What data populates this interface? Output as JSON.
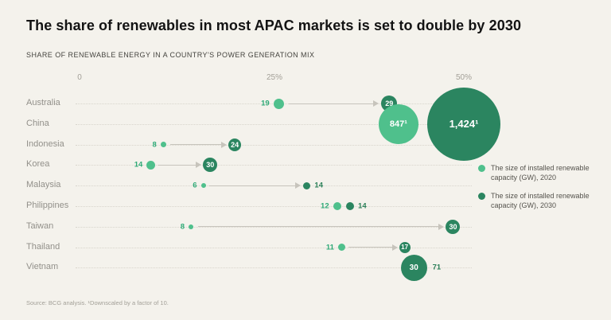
{
  "colors": {
    "background": "#f4f2ec",
    "light_green_2020": "#4fc08c",
    "dark_green_2030": "#2b8560",
    "arrow_gray": "#c7c4bc"
  },
  "chart_data": {
    "type": "dumbbell-bubble",
    "title": "The share of renewables in most APAC markets is set to double by 2030",
    "subtitle": "SHARE OF RENEWABLE ENERGY IN A COUNTRY'S POWER GENERATION MIX",
    "source": "Source: BCG analysis. ¹Downscaled by a factor of 10.",
    "x_axis": {
      "ticks": [
        "0",
        "25%",
        "50%"
      ],
      "range": [
        0,
        50
      ],
      "unit": "share of renewable energy in power generation mix (%)"
    },
    "legend": [
      {
        "label": "The size of installed renewable capacity (GW), 2020",
        "color": "light"
      },
      {
        "label": "The size of installed renewable capacity (GW), 2030",
        "color": "dark"
      }
    ],
    "rows": [
      {
        "country": "Australia",
        "share_2020_pct": 25.9,
        "share_2030_pct": 40.3,
        "gw_2020": "19",
        "gw_2030": "29",
        "dots": [
          {
            "value": "19",
            "share": 25.9,
            "d": 13,
            "color": "light",
            "label": "left"
          },
          {
            "value": "29",
            "share": 40.3,
            "d": 20,
            "color": "dark",
            "label": "inside"
          }
        ],
        "arrow": {
          "from": 27.2,
          "to": 38.7
        }
      },
      {
        "country": "China",
        "share_2020_pct": 41.5,
        "share_2030_pct": 50.0,
        "gw_2020": "847¹",
        "gw_2030": "1,424¹",
        "dots": [
          {
            "value": "847¹",
            "share": 41.5,
            "d": 50,
            "color": "light",
            "label": "inside"
          },
          {
            "value": "1,424¹",
            "share": 50.0,
            "d": 92,
            "color": "dark",
            "label": "inside"
          }
        ]
      },
      {
        "country": "Indonesia",
        "share_2020_pct": 10.9,
        "share_2030_pct": 20.2,
        "gw_2020": "8",
        "gw_2030": "24",
        "dots": [
          {
            "value": "8",
            "share": 10.9,
            "d": 7,
            "color": "light",
            "label": "left"
          },
          {
            "value": "24",
            "share": 20.2,
            "d": 16,
            "color": "dark",
            "label": "inside"
          }
        ],
        "arrow": {
          "from": 11.8,
          "to": 18.9
        }
      },
      {
        "country": "Korea",
        "share_2020_pct": 9.3,
        "share_2030_pct": 17.0,
        "gw_2020": "14",
        "gw_2030": "30",
        "dots": [
          {
            "value": "14",
            "share": 9.3,
            "d": 11,
            "color": "light",
            "label": "left"
          },
          {
            "value": "30",
            "share": 17.0,
            "d": 18,
            "color": "dark",
            "label": "inside"
          }
        ],
        "arrow": {
          "from": 10.3,
          "to": 15.6
        }
      },
      {
        "country": "Malaysia",
        "share_2020_pct": 16.1,
        "share_2030_pct": 29.6,
        "gw_2020": "6",
        "gw_2030": "14",
        "dots": [
          {
            "value": "6",
            "share": 16.1,
            "d": 6,
            "color": "light",
            "label": "left"
          },
          {
            "value": "14",
            "share": 29.6,
            "d": 9,
            "color": "dark",
            "label": "right"
          }
        ],
        "arrow": {
          "from": 16.9,
          "to": 28.6
        }
      },
      {
        "country": "Philippines",
        "share_2020_pct": 33.5,
        "share_2030_pct": 35.2,
        "gw_2020": "12",
        "gw_2030": "14",
        "dots": [
          {
            "value": "12",
            "share": 33.5,
            "d": 10,
            "color": "light",
            "label": "left"
          },
          {
            "value": "14",
            "share": 35.2,
            "d": 10,
            "color": "dark",
            "label": "right"
          }
        ]
      },
      {
        "country": "Taiwan",
        "share_2020_pct": 14.5,
        "share_2030_pct": 48.6,
        "gw_2020": "8",
        "gw_2030": "30",
        "dots": [
          {
            "value": "8",
            "share": 14.5,
            "d": 6,
            "color": "light",
            "label": "left"
          },
          {
            "value": "30",
            "share": 48.6,
            "d": 18,
            "color": "dark",
            "label": "inside"
          }
        ],
        "arrow": {
          "from": 15.4,
          "to": 47.2
        }
      },
      {
        "country": "Thailand",
        "share_2020_pct": 34.1,
        "share_2030_pct": 42.3,
        "gw_2020": "11",
        "gw_2030": "17",
        "dots": [
          {
            "value": "11",
            "share": 34.1,
            "d": 9,
            "color": "light",
            "label": "left"
          },
          {
            "value": "17",
            "share": 42.3,
            "d": 14,
            "color": "dark",
            "label": "inside"
          }
        ],
        "arrow": {
          "from": 35.0,
          "to": 41.2
        }
      },
      {
        "country": "Vietnam",
        "share_2020_pct": 43.5,
        "share_2030_pct": 43.5,
        "gw_2020": "30",
        "gw_2030": "71",
        "dots": [
          {
            "value": "30",
            "share": 43.5,
            "d": 33,
            "color": "dark",
            "label": "inside"
          },
          {
            "value": "71",
            "share": 45.4,
            "d": 0,
            "color": "dark",
            "label": "right"
          }
        ]
      }
    ]
  }
}
